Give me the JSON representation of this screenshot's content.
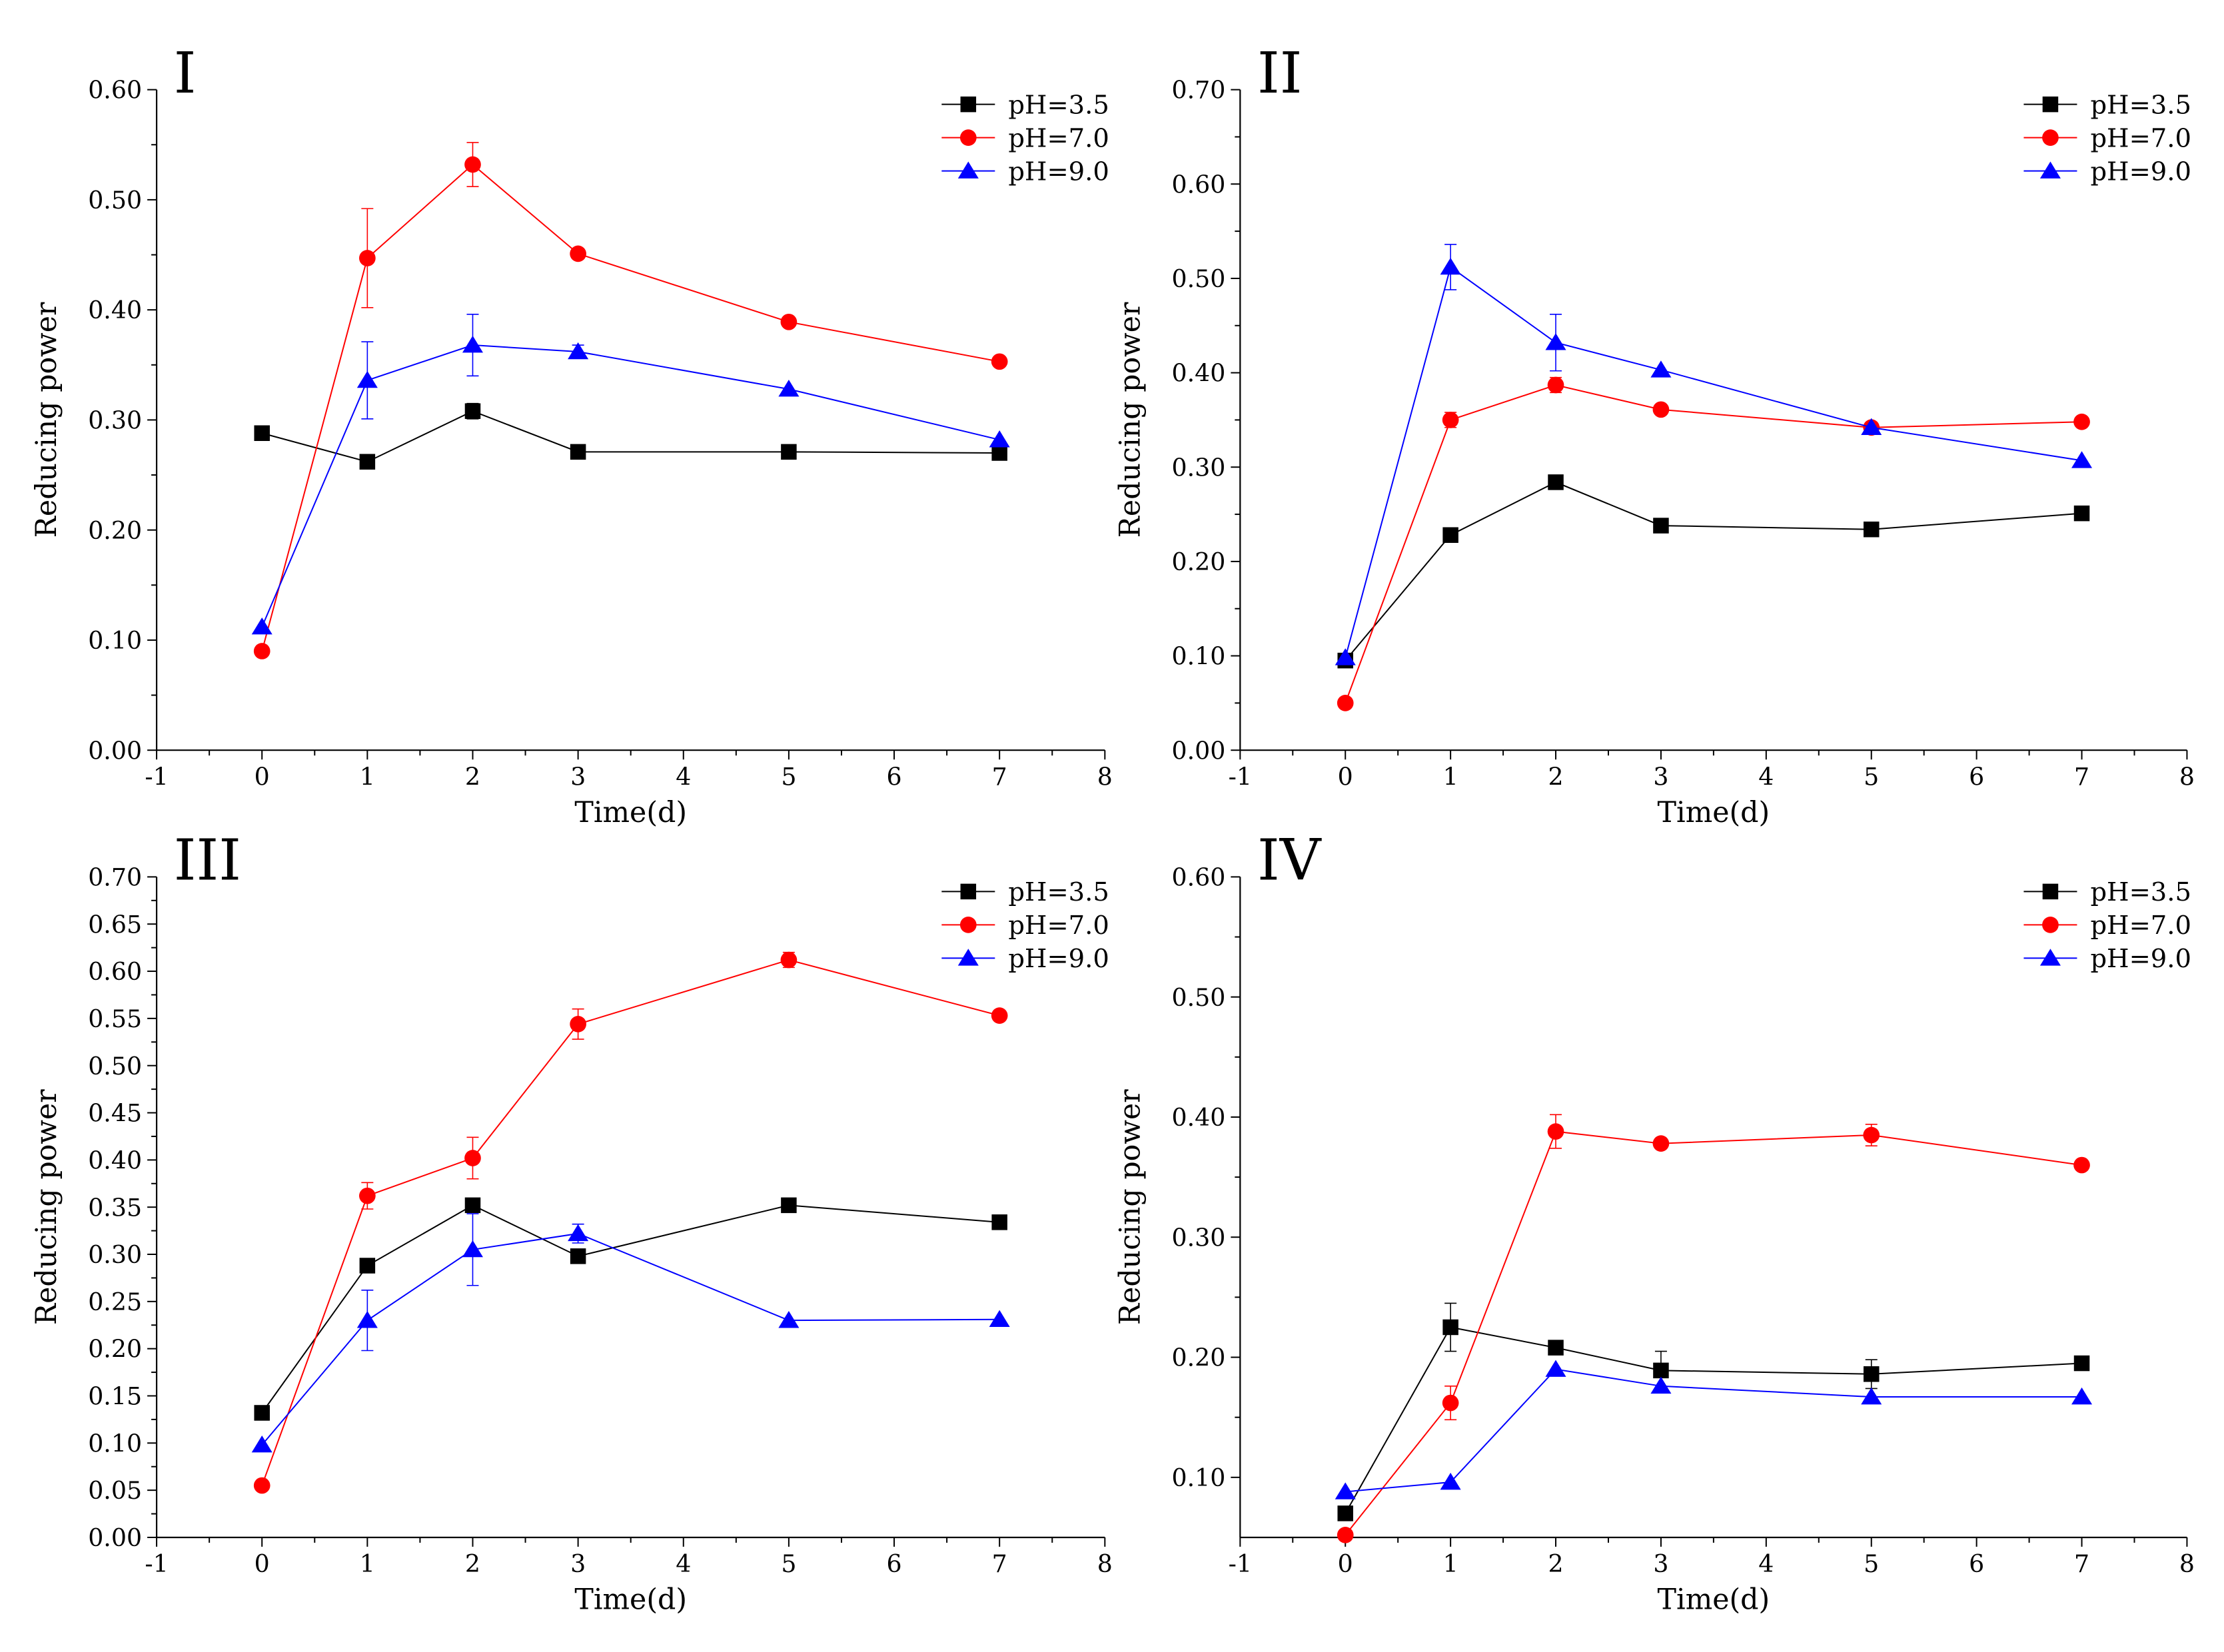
{
  "colors": {
    "series": [
      "#000000",
      "#ff0000",
      "#0000ff"
    ],
    "axis": "#000000",
    "background": "#ffffff"
  },
  "chart_data": [
    {
      "type": "line",
      "panel_label": "I",
      "xlabel": "Time(d)",
      "ylabel": "Reducing power",
      "xlim": [
        -1,
        8
      ],
      "ylim": [
        0,
        0.6
      ],
      "x_ticks": [
        -1,
        0,
        1,
        2,
        3,
        4,
        5,
        6,
        7,
        8
      ],
      "y_ticks": [
        0.0,
        0.1,
        0.2,
        0.3,
        0.4,
        0.5,
        0.6
      ],
      "y_tick_labels": [
        "0.00",
        "0.10",
        "0.20",
        "0.30",
        "0.40",
        "0.50",
        "0.60"
      ],
      "legend_position": "top-right",
      "grid": false,
      "series": [
        {
          "name": "pH=3.5",
          "marker": "square",
          "x": [
            0,
            1,
            2,
            3,
            5,
            7
          ],
          "y": [
            0.288,
            0.262,
            0.308,
            0.271,
            0.271,
            0.27
          ],
          "err": [
            0,
            0,
            0.007,
            0,
            0,
            0
          ]
        },
        {
          "name": "pH=7.0",
          "marker": "circle",
          "x": [
            0,
            1,
            2,
            3,
            5,
            7
          ],
          "y": [
            0.09,
            0.447,
            0.532,
            0.451,
            0.389,
            0.353
          ],
          "err": [
            0,
            0.045,
            0.02,
            0,
            0,
            0
          ]
        },
        {
          "name": "pH=9.0",
          "marker": "triangle",
          "x": [
            0,
            1,
            2,
            3,
            5,
            7
          ],
          "y": [
            0.112,
            0.336,
            0.368,
            0.362,
            0.328,
            0.282
          ],
          "err": [
            0,
            0.035,
            0.028,
            0.006,
            0,
            0
          ]
        }
      ]
    },
    {
      "type": "line",
      "panel_label": "II",
      "xlabel": "Time(d)",
      "ylabel": "Reducing power",
      "xlim": [
        -1,
        8
      ],
      "ylim": [
        0,
        0.7
      ],
      "x_ticks": [
        -1,
        0,
        1,
        2,
        3,
        4,
        5,
        6,
        7,
        8
      ],
      "y_ticks": [
        0.0,
        0.1,
        0.2,
        0.3,
        0.4,
        0.5,
        0.6,
        0.7
      ],
      "y_tick_labels": [
        "0.00",
        "0.10",
        "0.20",
        "0.30",
        "0.40",
        "0.50",
        "0.60",
        "0.70"
      ],
      "legend_position": "top-right",
      "grid": false,
      "series": [
        {
          "name": "pH=3.5",
          "marker": "square",
          "x": [
            0,
            1,
            2,
            3,
            5,
            7
          ],
          "y": [
            0.095,
            0.228,
            0.284,
            0.238,
            0.234,
            0.251
          ],
          "err": [
            0,
            0,
            0,
            0,
            0,
            0
          ]
        },
        {
          "name": "pH=7.0",
          "marker": "circle",
          "x": [
            0,
            1,
            2,
            3,
            5,
            7
          ],
          "y": [
            0.05,
            0.35,
            0.387,
            0.361,
            0.342,
            0.348
          ],
          "err": [
            0,
            0.008,
            0.008,
            0,
            0,
            0
          ]
        },
        {
          "name": "pH=9.0",
          "marker": "triangle",
          "x": [
            0,
            1,
            2,
            3,
            5,
            7
          ],
          "y": [
            0.098,
            0.512,
            0.432,
            0.403,
            0.342,
            0.307
          ],
          "err": [
            0,
            0.024,
            0.03,
            0,
            0,
            0
          ]
        }
      ]
    },
    {
      "type": "line",
      "panel_label": "III",
      "xlabel": "Time(d)",
      "ylabel": "Reducing power",
      "xlim": [
        -1,
        8
      ],
      "ylim": [
        0,
        0.7
      ],
      "x_ticks": [
        -1,
        0,
        1,
        2,
        3,
        4,
        5,
        6,
        7,
        8
      ],
      "y_ticks": [
        0.0,
        0.05,
        0.1,
        0.15,
        0.2,
        0.25,
        0.3,
        0.35,
        0.4,
        0.45,
        0.5,
        0.55,
        0.6,
        0.65,
        0.7
      ],
      "y_tick_labels": [
        "0.00",
        "0.05",
        "0.10",
        "0.15",
        "0.20",
        "0.25",
        "0.30",
        "0.35",
        "0.40",
        "0.45",
        "0.50",
        "0.55",
        "0.60",
        "0.65",
        "0.70"
      ],
      "legend_position": "top-right",
      "grid": false,
      "series": [
        {
          "name": "pH=3.5",
          "marker": "square",
          "x": [
            0,
            1,
            2,
            3,
            5,
            7
          ],
          "y": [
            0.132,
            0.288,
            0.352,
            0.298,
            0.352,
            0.334
          ],
          "err": [
            0,
            0,
            0,
            0,
            0,
            0
          ]
        },
        {
          "name": "pH=7.0",
          "marker": "circle",
          "x": [
            0,
            1,
            2,
            3,
            5,
            7
          ],
          "y": [
            0.055,
            0.362,
            0.402,
            0.544,
            0.612,
            0.553
          ],
          "err": [
            0,
            0.014,
            0.022,
            0.016,
            0.008,
            0
          ]
        },
        {
          "name": "pH=9.0",
          "marker": "triangle",
          "x": [
            0,
            1,
            2,
            3,
            5,
            7
          ],
          "y": [
            0.098,
            0.23,
            0.305,
            0.322,
            0.23,
            0.231
          ],
          "err": [
            0,
            0.032,
            0.038,
            0.01,
            0,
            0
          ]
        }
      ]
    },
    {
      "type": "line",
      "panel_label": "IV",
      "xlabel": "Time(d)",
      "ylabel": "Reducing power",
      "xlim": [
        -1,
        8
      ],
      "ylim": [
        0.05,
        0.6
      ],
      "x_ticks": [
        -1,
        0,
        1,
        2,
        3,
        4,
        5,
        6,
        7,
        8
      ],
      "y_ticks": [
        0.1,
        0.2,
        0.3,
        0.4,
        0.5,
        0.6
      ],
      "y_tick_labels": [
        "0.10",
        "0.20",
        "0.30",
        "0.40",
        "0.50",
        "0.60"
      ],
      "legend_position": "top-right",
      "grid": false,
      "series": [
        {
          "name": "pH=3.5",
          "marker": "square",
          "x": [
            0,
            1,
            2,
            3,
            5,
            7
          ],
          "y": [
            0.07,
            0.225,
            0.208,
            0.189,
            0.186,
            0.195
          ],
          "err": [
            0,
            0.02,
            0,
            0.016,
            0.012,
            0
          ]
        },
        {
          "name": "pH=7.0",
          "marker": "circle",
          "x": [
            0,
            1,
            2,
            3,
            5,
            7
          ],
          "y": [
            0.052,
            0.162,
            0.388,
            0.378,
            0.385,
            0.36
          ],
          "err": [
            0,
            0.014,
            0.014,
            0,
            0.009,
            0
          ]
        },
        {
          "name": "pH=9.0",
          "marker": "triangle",
          "x": [
            0,
            1,
            2,
            3,
            5,
            7
          ],
          "y": [
            0.088,
            0.096,
            0.19,
            0.176,
            0.167,
            0.167
          ],
          "err": [
            0,
            0,
            0,
            0,
            0,
            0
          ]
        }
      ]
    }
  ]
}
